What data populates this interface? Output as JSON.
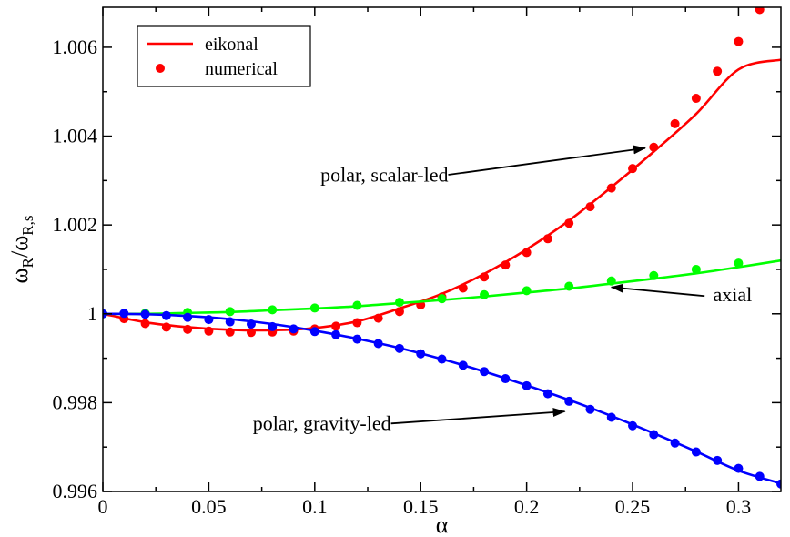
{
  "chart_data": {
    "type": "line",
    "title": "",
    "xlabel": "α",
    "ylabel": {
      "main": "ω",
      "sub1": "R",
      "mid": "/ω",
      "sub2": "R,s"
    },
    "xlim": [
      0,
      0.32
    ],
    "ylim": [
      0.996,
      1.0069
    ],
    "xticks": [
      0,
      0.05,
      0.1,
      0.15,
      0.2,
      0.25,
      0.3
    ],
    "xtick_labels": [
      "0",
      "0.05",
      "0.1",
      "0.15",
      "0.2",
      "0.25",
      "0.3"
    ],
    "yticks": [
      0.996,
      0.998,
      1.0,
      1.002,
      1.004,
      1.006
    ],
    "ytick_labels": [
      "0.996",
      "0.998",
      "1",
      "1.002",
      "1.004",
      "1.006"
    ],
    "legend": {
      "placement": "top-left",
      "entries": [
        {
          "label": "eikonal",
          "marker": "line",
          "color": "#ff0000"
        },
        {
          "label": "numerical",
          "marker": "circle",
          "color": "#ff0000"
        }
      ]
    },
    "series": [
      {
        "kind": "line",
        "color": "#ff0000",
        "x": [
          0,
          0.02,
          0.04,
          0.06,
          0.08,
          0.1,
          0.12,
          0.14,
          0.16,
          0.18,
          0.2,
          0.22,
          0.24,
          0.26,
          0.28,
          0.3,
          0.32
        ],
        "y": [
          1.0,
          0.99981,
          0.9997,
          0.99964,
          0.99963,
          0.99968,
          0.99983,
          1.00012,
          1.00045,
          1.0009,
          1.00145,
          1.0021,
          1.00285,
          1.00365,
          1.0045,
          1.0055,
          1.00572
        ]
      },
      {
        "kind": "points",
        "color": "#ff0000",
        "x": [
          0,
          0.01,
          0.02,
          0.03,
          0.04,
          0.05,
          0.06,
          0.07,
          0.08,
          0.09,
          0.1,
          0.11,
          0.12,
          0.13,
          0.14,
          0.15,
          0.16,
          0.17,
          0.18,
          0.19,
          0.2,
          0.21,
          0.22,
          0.23,
          0.24,
          0.25,
          0.26,
          0.27,
          0.28,
          0.29,
          0.3,
          0.31
        ],
        "y": [
          1.0,
          0.99989,
          0.99978,
          0.9997,
          0.99965,
          0.99961,
          0.99959,
          0.99958,
          0.99959,
          0.99961,
          0.99966,
          0.99972,
          0.9998,
          0.9999,
          1.00005,
          1.0002,
          1.00038,
          1.00058,
          1.00083,
          1.0011,
          1.00138,
          1.00169,
          1.00204,
          1.00241,
          1.00283,
          1.00327,
          1.00375,
          1.00428,
          1.00485,
          1.00546,
          1.00613,
          1.00685
        ]
      },
      {
        "kind": "line",
        "color": "#00ff00",
        "x": [
          0,
          0.02,
          0.04,
          0.06,
          0.08,
          0.1,
          0.12,
          0.14,
          0.16,
          0.18,
          0.2,
          0.22,
          0.24,
          0.26,
          0.28,
          0.3,
          0.32
        ],
        "y": [
          1.0,
          1.0,
          1.00002,
          1.00004,
          1.00008,
          1.00012,
          1.00017,
          1.00024,
          1.00031,
          1.00039,
          1.00048,
          1.00057,
          1.00068,
          1.00079,
          1.00091,
          1.00105,
          1.0012
        ]
      },
      {
        "kind": "points",
        "color": "#00ff00",
        "x": [
          0,
          0.02,
          0.04,
          0.06,
          0.08,
          0.1,
          0.12,
          0.14,
          0.16,
          0.18,
          0.2,
          0.22,
          0.24,
          0.26,
          0.28,
          0.3
        ],
        "y": [
          1.0,
          1.00001,
          1.00003,
          1.00005,
          1.00009,
          1.00013,
          1.00019,
          1.00026,
          1.00034,
          1.00043,
          1.00052,
          1.00062,
          1.00074,
          1.00086,
          1.001,
          1.00114
        ]
      },
      {
        "kind": "line",
        "color": "#0000ff",
        "x": [
          0,
          0.02,
          0.04,
          0.06,
          0.08,
          0.1,
          0.12,
          0.14,
          0.16,
          0.18,
          0.2,
          0.22,
          0.24,
          0.26,
          0.28,
          0.3,
          0.32
        ],
        "y": [
          1.0,
          0.99999,
          0.99995,
          0.99988,
          0.99977,
          0.99962,
          0.99944,
          0.99923,
          0.99898,
          0.9987,
          0.99839,
          0.99806,
          0.9977,
          0.99731,
          0.9969,
          0.99647,
          0.99618
        ]
      },
      {
        "kind": "points",
        "color": "#0000ff",
        "x": [
          0,
          0.01,
          0.02,
          0.03,
          0.04,
          0.05,
          0.06,
          0.07,
          0.08,
          0.09,
          0.1,
          0.11,
          0.12,
          0.13,
          0.14,
          0.15,
          0.16,
          0.17,
          0.18,
          0.19,
          0.2,
          0.21,
          0.22,
          0.23,
          0.24,
          0.25,
          0.26,
          0.27,
          0.28,
          0.29,
          0.3,
          0.31,
          0.32
        ],
        "y": [
          1.0,
          1.00001,
          0.99999,
          0.99996,
          0.99992,
          0.99987,
          0.99982,
          0.99977,
          0.99971,
          0.99966,
          0.9996,
          0.99953,
          0.99943,
          0.99933,
          0.99922,
          0.9991,
          0.99898,
          0.99884,
          0.9987,
          0.99854,
          0.99838,
          0.9982,
          0.99803,
          0.99785,
          0.99767,
          0.99748,
          0.99728,
          0.99709,
          0.99689,
          0.9967,
          0.99652,
          0.99634,
          0.99617
        ]
      }
    ],
    "annotations": [
      {
        "text": "polar, scalar-led",
        "anchor": "end",
        "tx": 0.163,
        "ty": 1.00298,
        "ax0": 0.163,
        "ay0": 1.00313,
        "ax1": 0.256,
        "ay1": 1.00373
      },
      {
        "text": "axial",
        "anchor": "start",
        "tx": 0.288,
        "ty": 1.00028,
        "ax0": 0.284,
        "ay0": 1.0004,
        "ax1": 0.24,
        "ay1": 1.0006
      },
      {
        "text": "polar, gravity-led",
        "anchor": "end",
        "tx": 0.136,
        "ty": 0.99738,
        "ax0": 0.136,
        "ay0": 0.99753,
        "ax1": 0.218,
        "ay1": 0.9978
      }
    ]
  }
}
